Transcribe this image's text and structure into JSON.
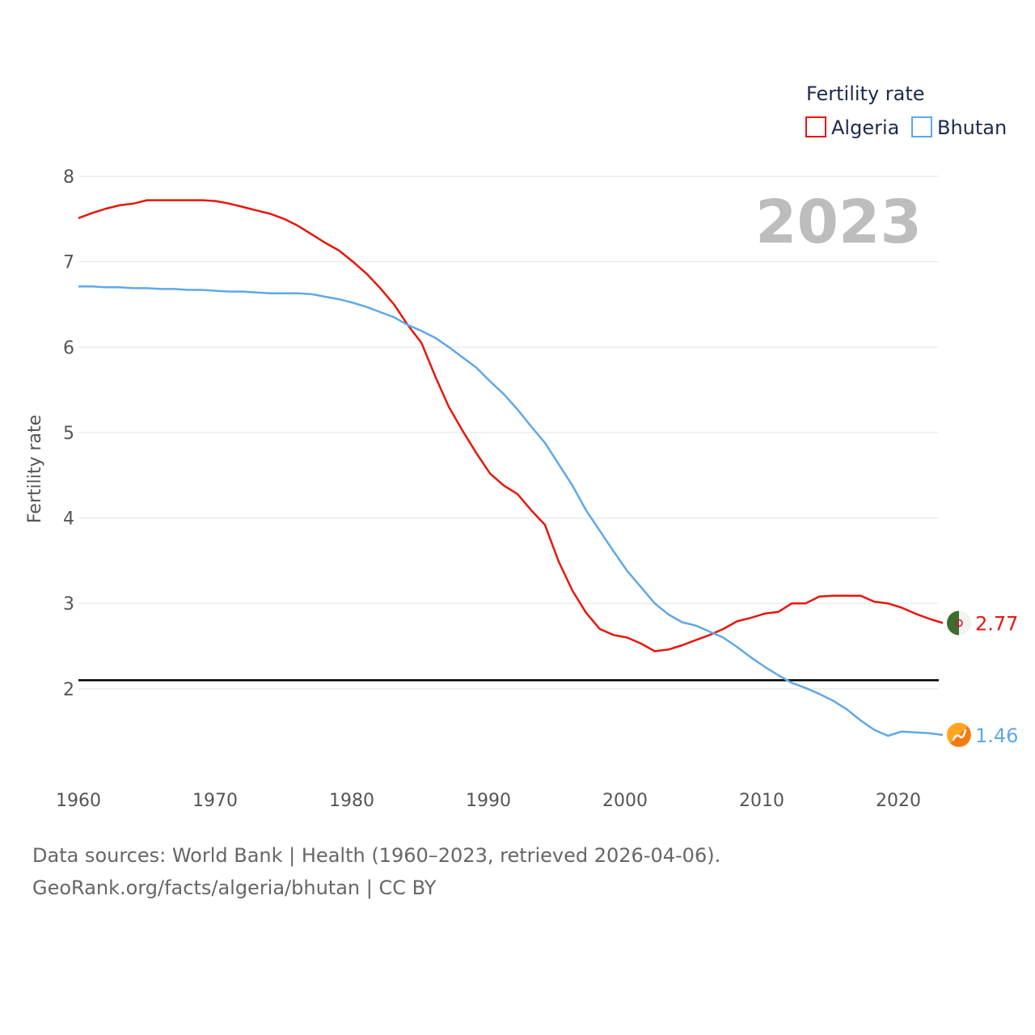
{
  "chart_data": {
    "type": "line",
    "year_label": "2023",
    "ylabel": "Fertility rate",
    "xlabel": "",
    "ylim": [
      1,
      8
    ],
    "xlim": [
      1960,
      2023
    ],
    "y_ticks": [
      "2",
      "3",
      "4",
      "5",
      "6",
      "7",
      "8"
    ],
    "x_ticks": [
      "1960",
      "1970",
      "1980",
      "1990",
      "2000",
      "2010",
      "2020"
    ],
    "reference_line": 2.1,
    "grid": true,
    "legend": {
      "title": "Fertility rate",
      "position": "top-right",
      "entries": [
        "Algeria",
        "Bhutan"
      ]
    },
    "x": [
      1960,
      1961,
      1962,
      1963,
      1964,
      1965,
      1966,
      1967,
      1968,
      1969,
      1970,
      1971,
      1972,
      1973,
      1974,
      1975,
      1976,
      1977,
      1978,
      1979,
      1980,
      1981,
      1982,
      1983,
      1984,
      1985,
      1986,
      1987,
      1988,
      1989,
      1990,
      1991,
      1992,
      1993,
      1994,
      1995,
      1996,
      1997,
      1998,
      1999,
      2000,
      2001,
      2002,
      2003,
      2004,
      2005,
      2006,
      2007,
      2008,
      2009,
      2010,
      2011,
      2012,
      2013,
      2014,
      2015,
      2016,
      2017,
      2018,
      2019,
      2020,
      2021,
      2022,
      2023
    ],
    "series": [
      {
        "name": "Algeria",
        "color": "#e8160c",
        "end_label": "2.77",
        "values": [
          7.51,
          7.57,
          7.62,
          7.66,
          7.68,
          7.72,
          7.72,
          7.72,
          7.72,
          7.72,
          7.71,
          7.68,
          7.64,
          7.6,
          7.56,
          7.5,
          7.42,
          7.32,
          7.22,
          7.13,
          7.0,
          6.86,
          6.69,
          6.5,
          6.26,
          6.05,
          5.66,
          5.3,
          5.02,
          4.76,
          4.52,
          4.38,
          4.28,
          4.09,
          3.92,
          3.49,
          3.15,
          2.89,
          2.7,
          2.63,
          2.6,
          2.53,
          2.44,
          2.46,
          2.51,
          2.57,
          2.63,
          2.7,
          2.79,
          2.83,
          2.88,
          2.9,
          3.0,
          3.0,
          3.08,
          3.09,
          3.09,
          3.09,
          3.02,
          3.0,
          2.95,
          2.88,
          2.82,
          2.77
        ]
      },
      {
        "name": "Bhutan",
        "color": "#5fa8e8",
        "end_label": "1.46",
        "values": [
          6.71,
          6.71,
          6.7,
          6.7,
          6.69,
          6.69,
          6.68,
          6.68,
          6.67,
          6.67,
          6.66,
          6.65,
          6.65,
          6.64,
          6.63,
          6.63,
          6.63,
          6.62,
          6.59,
          6.56,
          6.52,
          6.47,
          6.41,
          6.35,
          6.26,
          6.19,
          6.11,
          6.0,
          5.88,
          5.76,
          5.6,
          5.45,
          5.27,
          5.07,
          4.88,
          4.63,
          4.38,
          4.09,
          3.85,
          3.61,
          3.38,
          3.19,
          3.0,
          2.87,
          2.78,
          2.74,
          2.67,
          2.6,
          2.49,
          2.37,
          2.26,
          2.16,
          2.07,
          2.01,
          1.94,
          1.86,
          1.76,
          1.63,
          1.52,
          1.45,
          1.5,
          1.49,
          1.48,
          1.46
        ]
      }
    ]
  },
  "footer": {
    "line1": "Data sources: World Bank | Health (1960–2023, retrieved 2026-04-06).",
    "line2": "GeoRank.org/facts/algeria/bhutan | CC BY"
  }
}
